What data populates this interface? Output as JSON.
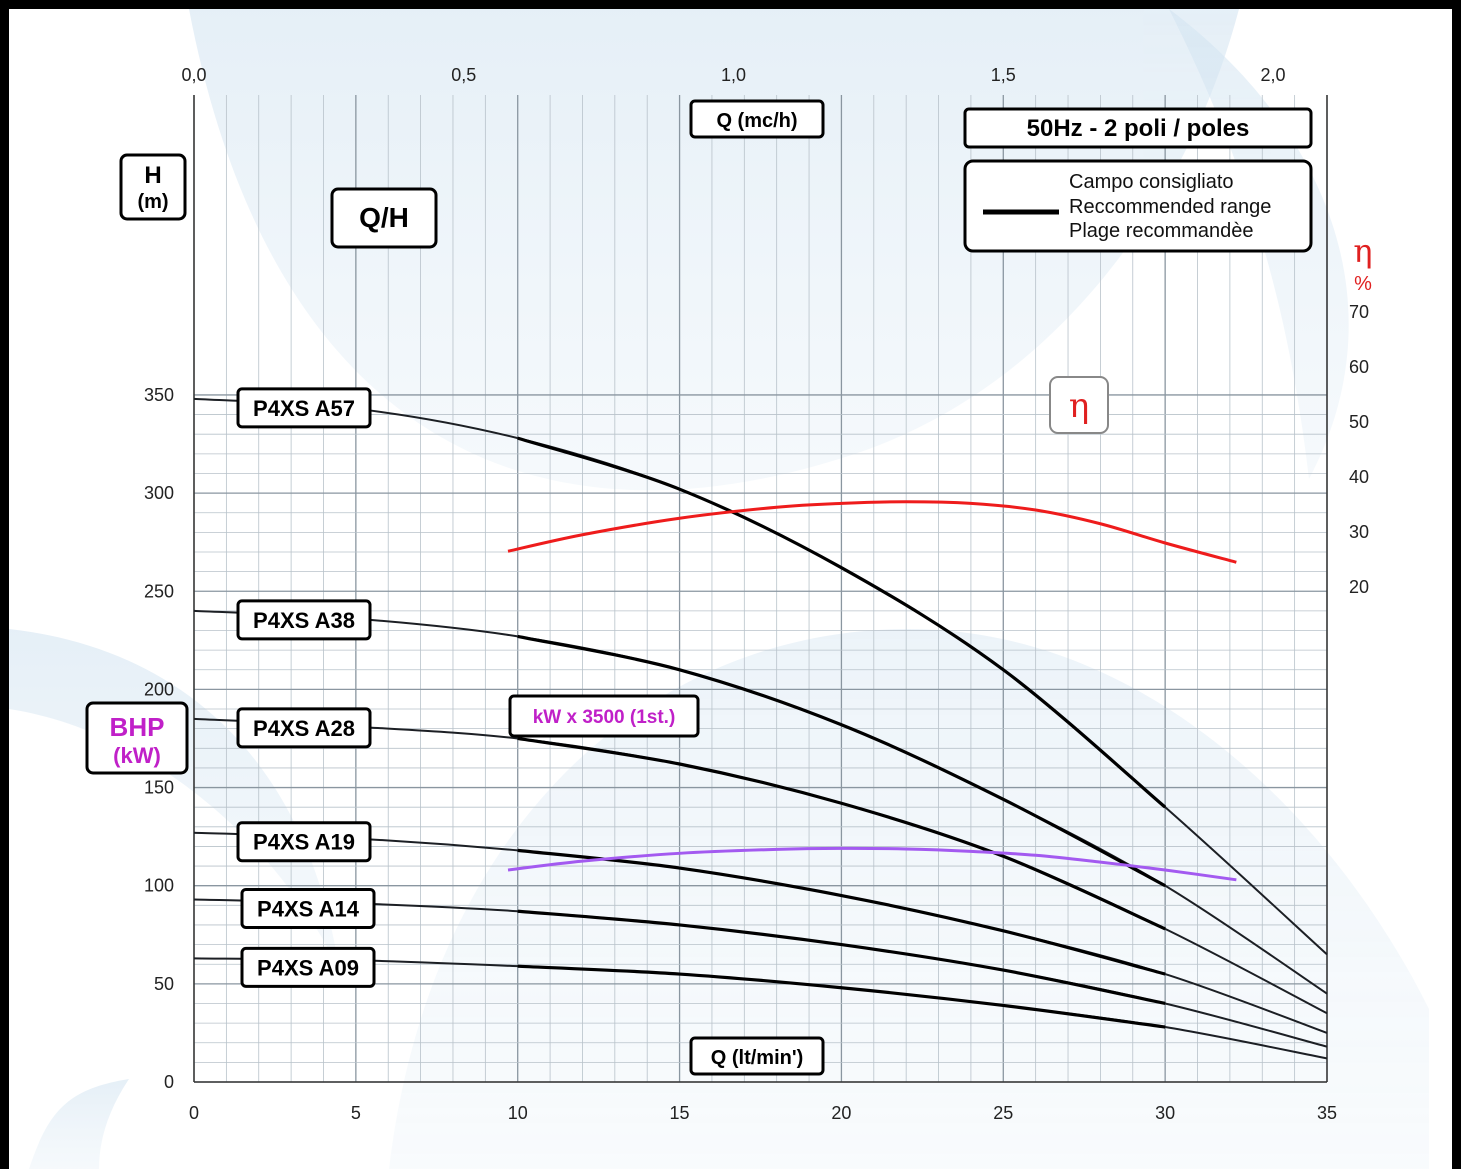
{
  "chart_data": {
    "type": "line",
    "title": "50Hz - 2 poli / poles",
    "x_bottom": {
      "label": "Q (lt/min')",
      "range": [
        0,
        35
      ],
      "ticks": [
        "0",
        "5",
        "10",
        "15",
        "20",
        "25",
        "30",
        "35"
      ]
    },
    "x_top": {
      "label": "Q (mc/h)",
      "range": [
        0,
        2.1
      ],
      "ticks": [
        "0,0",
        "0,5",
        "1,0",
        "1,5",
        "2,0"
      ]
    },
    "y_left": {
      "label_line1": "H",
      "label_line2": "(m)",
      "range": [
        0,
        350
      ],
      "ticks": [
        "0",
        "50",
        "100",
        "150",
        "200",
        "250",
        "300",
        "350"
      ]
    },
    "y_right": {
      "label_line1": "η",
      "label_line2": "%",
      "range": [
        20,
        70
      ],
      "ticks": [
        "20",
        "30",
        "40",
        "50",
        "60",
        "70"
      ]
    },
    "qh_label": "Q/H",
    "eta_label": "η",
    "bhp_label_line1": "BHP",
    "bhp_label_line2": "(kW)",
    "kw_label": "kW x 3500 (1st.)",
    "legend": {
      "line1": "Campo consigliato",
      "line2": "Reccommended range",
      "line3": "Plage recommandèe"
    },
    "grid": true,
    "series": [
      {
        "name": "P4XS A57",
        "x": [
          0,
          5,
          10,
          15,
          20,
          25,
          30,
          35
        ],
        "y": [
          348,
          343,
          328,
          302,
          262,
          210,
          140,
          65
        ]
      },
      {
        "name": "P4XS A38",
        "x": [
          0,
          5,
          10,
          15,
          20,
          25,
          30,
          35
        ],
        "y": [
          240,
          236,
          227,
          210,
          182,
          144,
          100,
          45
        ]
      },
      {
        "name": "P4XS A28",
        "x": [
          0,
          5,
          10,
          15,
          20,
          25,
          30,
          35
        ],
        "y": [
          185,
          181,
          175,
          162,
          142,
          115,
          78,
          35
        ]
      },
      {
        "name": "P4XS A19",
        "x": [
          0,
          5,
          10,
          15,
          20,
          25,
          30,
          35
        ],
        "y": [
          127,
          124,
          118,
          109,
          95,
          77,
          55,
          25
        ]
      },
      {
        "name": "P4XS A14",
        "x": [
          0,
          5,
          10,
          15,
          20,
          25,
          30,
          35
        ],
        "y": [
          93,
          91,
          87,
          80,
          70,
          57,
          40,
          18
        ]
      },
      {
        "name": "P4XS A09",
        "x": [
          0,
          5,
          10,
          15,
          20,
          25,
          30,
          35
        ],
        "y": [
          63,
          62,
          59,
          55,
          48,
          39,
          28,
          12
        ]
      }
    ],
    "efficiency": {
      "x": [
        9.7,
        12,
        15,
        18,
        20,
        22,
        24,
        26,
        28,
        30,
        32.2
      ],
      "y": [
        26.5,
        29.5,
        32.5,
        34.5,
        35.2,
        35.5,
        35.2,
        34,
        31.5,
        28,
        24.5
      ]
    },
    "power": {
      "x": [
        9.7,
        12,
        15,
        18,
        20,
        22,
        24,
        26,
        28,
        30,
        32.2
      ],
      "y": [
        108,
        112.5,
        116.5,
        118.5,
        119,
        118.7,
        117.5,
        115.5,
        112,
        108,
        103
      ]
    }
  }
}
